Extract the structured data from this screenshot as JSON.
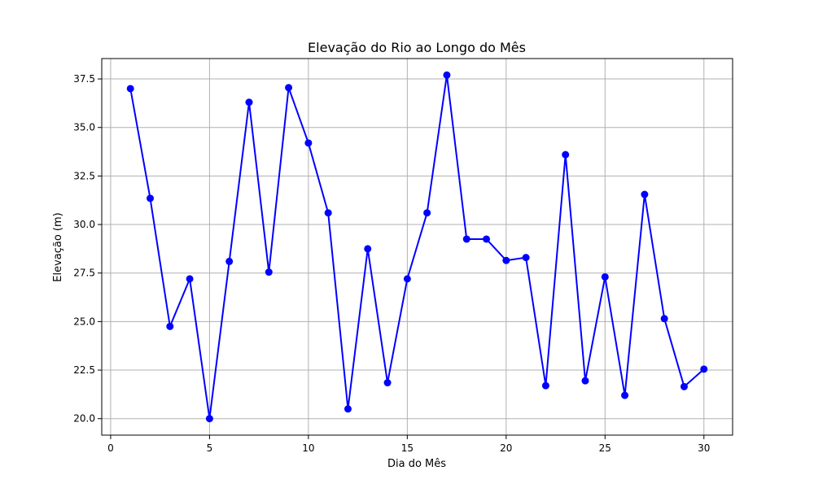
{
  "chart_data": {
    "type": "line",
    "title": "Elevação do Rio ao Longo do Mês",
    "xlabel": "Dia do Mês",
    "ylabel": "Elevação (m)",
    "x": [
      1,
      2,
      3,
      4,
      5,
      6,
      7,
      8,
      9,
      10,
      11,
      12,
      13,
      14,
      15,
      16,
      17,
      18,
      19,
      20,
      21,
      22,
      23,
      24,
      25,
      26,
      27,
      28,
      29,
      30
    ],
    "series": [
      {
        "values": [
          37.0,
          31.35,
          24.75,
          27.2,
          20.0,
          28.1,
          36.3,
          27.55,
          37.05,
          34.2,
          30.6,
          20.5,
          28.75,
          21.85,
          27.2,
          30.6,
          37.7,
          29.25,
          29.25,
          28.15,
          28.3,
          21.7,
          33.6,
          21.95,
          27.3,
          21.2,
          31.55,
          25.15,
          21.65,
          22.55
        ],
        "color": "#0000ff",
        "marker": "circle"
      }
    ],
    "xlim": [
      -0.45,
      31.45
    ],
    "ylim": [
      19.15,
      38.55
    ],
    "xticks": [
      0,
      5,
      10,
      15,
      20,
      25,
      30
    ],
    "yticks": [
      20.0,
      22.5,
      25.0,
      27.5,
      30.0,
      32.5,
      35.0,
      37.5
    ],
    "xtick_labels": [
      "0",
      "5",
      "10",
      "15",
      "20",
      "25",
      "30"
    ],
    "ytick_labels": [
      "20.0",
      "22.5",
      "25.0",
      "27.5",
      "30.0",
      "32.5",
      "35.0",
      "37.5"
    ],
    "grid": true,
    "grid_color": "#b0b0b0",
    "legend": "none"
  }
}
